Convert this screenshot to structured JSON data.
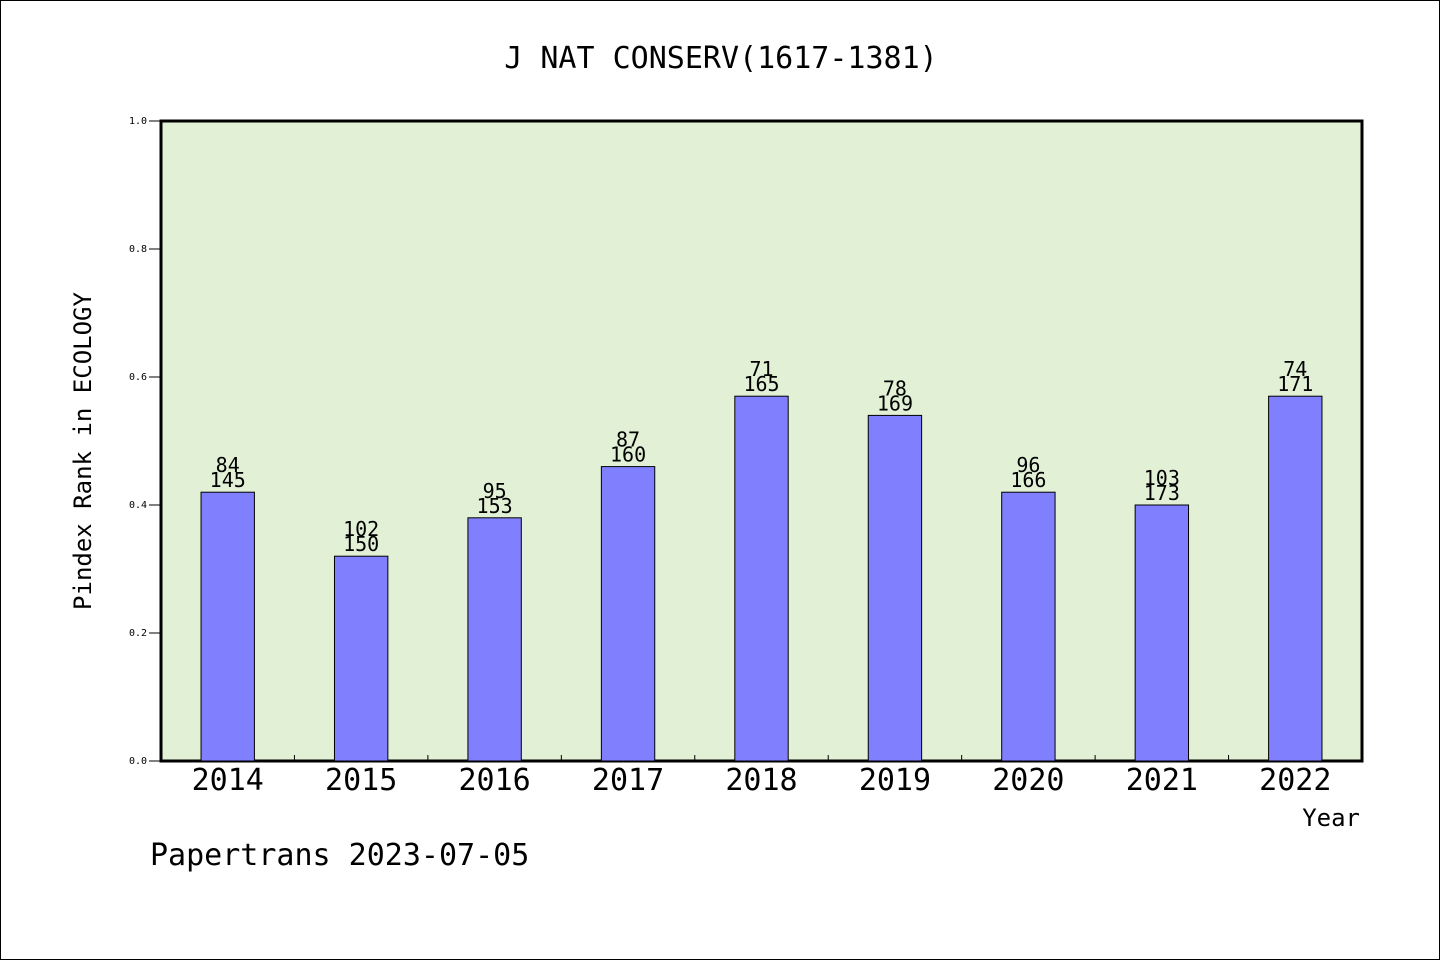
{
  "chart_data": {
    "type": "bar",
    "title": "J NAT CONSERV(1617-1381)",
    "xlabel": "Year",
    "ylabel": "Pindex Rank in ECOLOGY",
    "footer": "Papertrans 2023-07-05",
    "ylim": [
      0,
      1.0
    ],
    "yticks": [
      "0.0",
      "0.2",
      "0.4",
      "0.6",
      "0.8",
      "1.0"
    ],
    "categories": [
      "2014",
      "2015",
      "2016",
      "2017",
      "2018",
      "2019",
      "2020",
      "2021",
      "2022"
    ],
    "values": [
      0.42,
      0.32,
      0.38,
      0.46,
      0.57,
      0.54,
      0.42,
      0.4,
      0.57
    ],
    "label_top": [
      "84",
      "102",
      "95",
      "87",
      "71",
      "78",
      "96",
      "103",
      "74"
    ],
    "label_bottom": [
      "145",
      "150",
      "153",
      "160",
      "165",
      "169",
      "166",
      "173",
      "171"
    ],
    "grid": false,
    "colors": {
      "plot_background": "#e2f0d6",
      "bar_fill": "#8080ff",
      "bar_stroke": "#000000"
    }
  }
}
